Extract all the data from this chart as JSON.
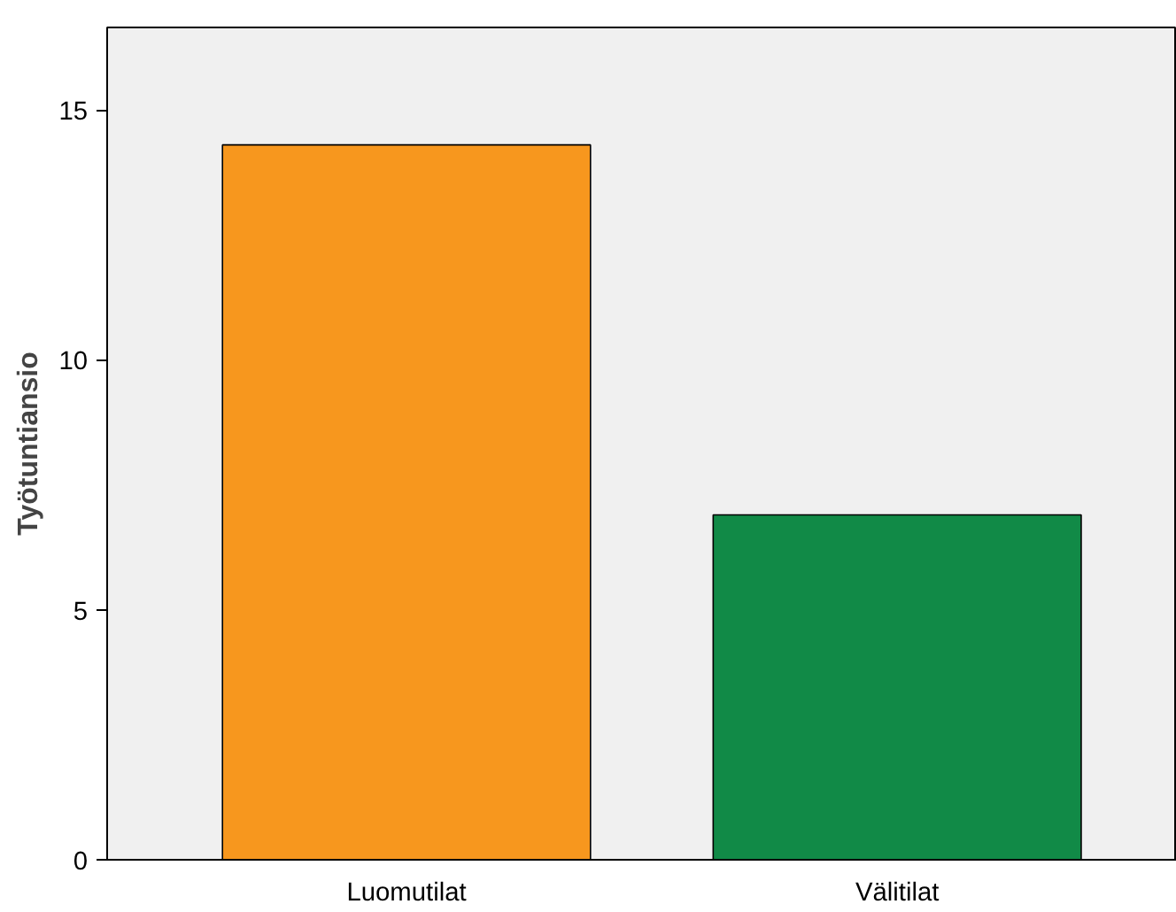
{
  "chart_data": {
    "type": "bar",
    "ylabel": "Työtuntiansio",
    "categories": [
      "Luomutilat",
      "Välitilat"
    ],
    "values": [
      14.3,
      6.9
    ],
    "colors": [
      "#f7971e",
      "#118a47"
    ],
    "ylim": [
      0,
      16.65
    ],
    "yticks": [
      0,
      5,
      10,
      15
    ],
    "grid": false
  }
}
